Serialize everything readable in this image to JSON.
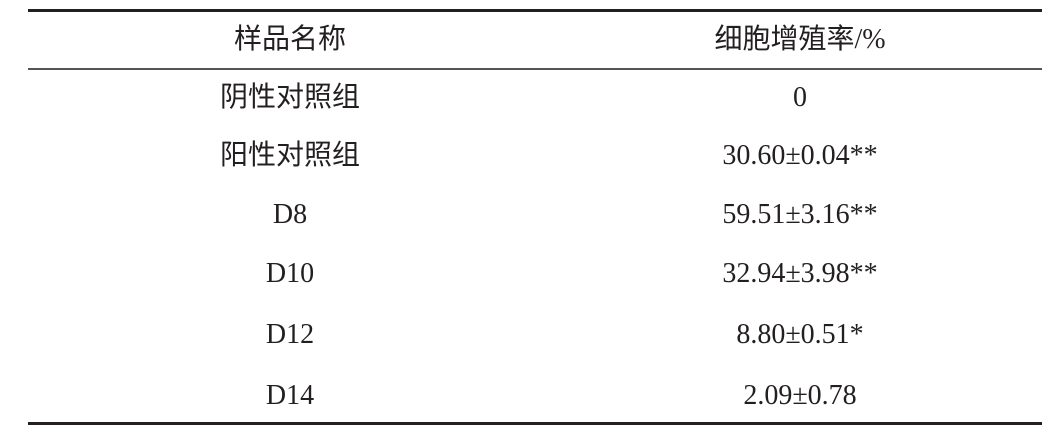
{
  "table": {
    "headers": [
      "样品名称",
      "细胞增殖率/%"
    ],
    "rows": [
      [
        "阴性对照组",
        "0"
      ],
      [
        "阳性对照组",
        "30.60±0.04**"
      ],
      [
        "D8",
        "59.51±3.16**"
      ],
      [
        "D10",
        "32.94±3.98**"
      ],
      [
        "D12",
        "8.80±0.51*"
      ],
      [
        "D14",
        "2.09±0.78"
      ]
    ]
  }
}
